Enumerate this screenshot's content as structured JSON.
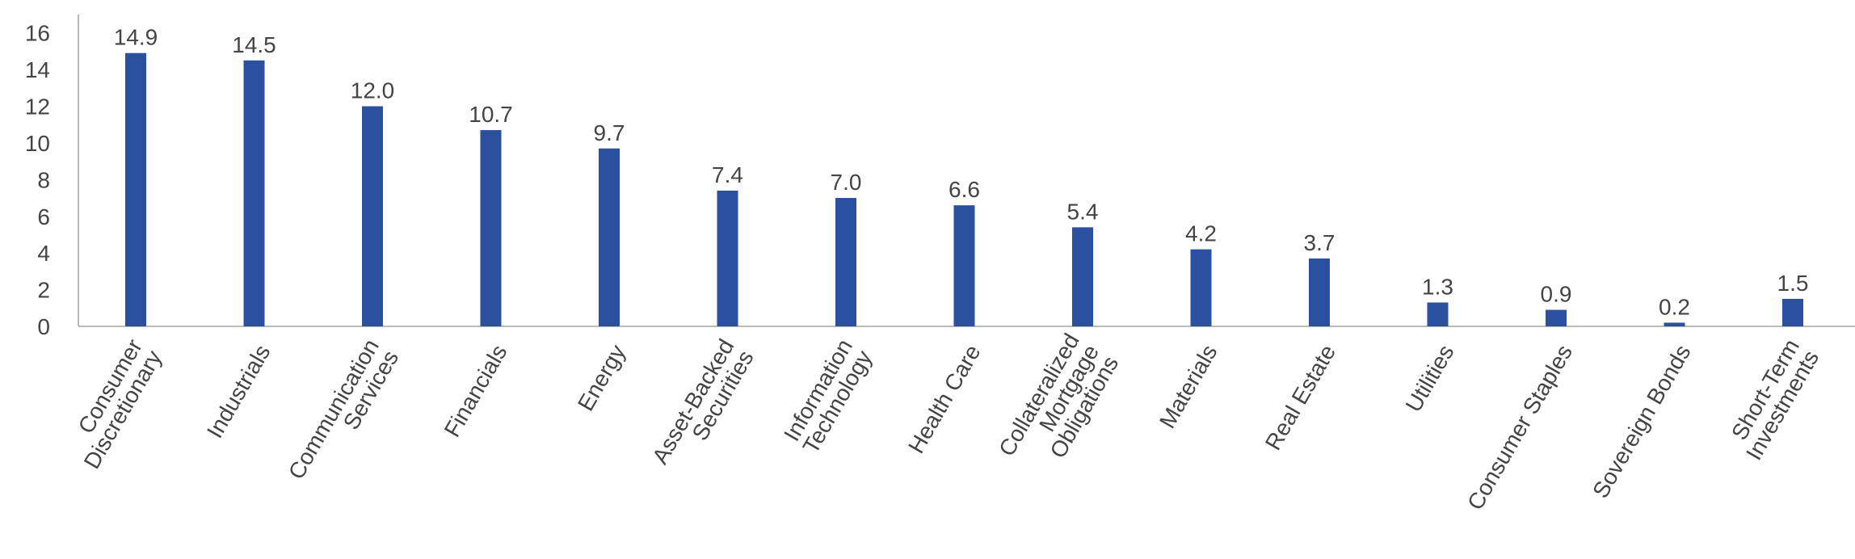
{
  "chart_data": {
    "type": "bar",
    "categories": [
      "Consumer\nDiscretionary",
      "Industrials",
      "Communication\nServices",
      "Financials",
      "Energy",
      "Asset-Backed\nSecurities",
      "Information\nTechnology",
      "Health Care",
      "Collateralized\nMortgage\nObligations",
      "Materials",
      "Real Estate",
      "Utilities",
      "Consumer Staples",
      "Sovereign Bonds",
      "Short-Term\nInvestments"
    ],
    "values": [
      14.9,
      14.5,
      12.0,
      10.7,
      9.7,
      7.4,
      7.0,
      6.6,
      5.4,
      4.2,
      3.7,
      1.3,
      0.9,
      0.2,
      1.5
    ],
    "value_labels": [
      "14.9",
      "14.5",
      "12.0",
      "10.7",
      "9.7",
      "7.4",
      "7.0",
      "6.6",
      "5.4",
      "4.2",
      "3.7",
      "1.3",
      "0.9",
      "0.2",
      "1.5"
    ],
    "color": "#2b50a0",
    "ylim": [
      0,
      17
    ],
    "yticks": [
      0,
      2,
      4,
      6,
      8,
      10,
      12,
      14,
      16
    ],
    "grid": false
  }
}
